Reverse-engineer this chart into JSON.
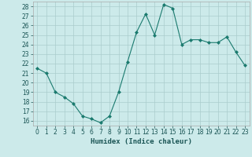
{
  "x": [
    0,
    1,
    2,
    3,
    4,
    5,
    6,
    7,
    8,
    9,
    10,
    11,
    12,
    13,
    14,
    15,
    16,
    17,
    18,
    19,
    20,
    21,
    22,
    23
  ],
  "y": [
    21.5,
    21.0,
    19.0,
    18.5,
    17.8,
    16.5,
    16.2,
    15.8,
    16.5,
    19.0,
    22.2,
    25.3,
    27.2,
    25.0,
    28.2,
    27.8,
    24.0,
    24.5,
    24.5,
    24.2,
    24.2,
    24.8,
    23.2,
    21.8
  ],
  "line_color": "#1a7a6e",
  "marker": "D",
  "marker_size": 2.0,
  "bg_color": "#cceaea",
  "grid_color": "#aacccc",
  "xlabel": "Humidex (Indice chaleur)",
  "xlim": [
    -0.5,
    23.5
  ],
  "ylim": [
    15.5,
    28.5
  ],
  "yticks": [
    16,
    17,
    18,
    19,
    20,
    21,
    22,
    23,
    24,
    25,
    26,
    27,
    28
  ],
  "xticks": [
    0,
    1,
    2,
    3,
    4,
    5,
    6,
    7,
    8,
    9,
    10,
    11,
    12,
    13,
    14,
    15,
    16,
    17,
    18,
    19,
    20,
    21,
    22,
    23
  ],
  "tick_fontsize": 5.5,
  "xlabel_fontsize": 6.5
}
